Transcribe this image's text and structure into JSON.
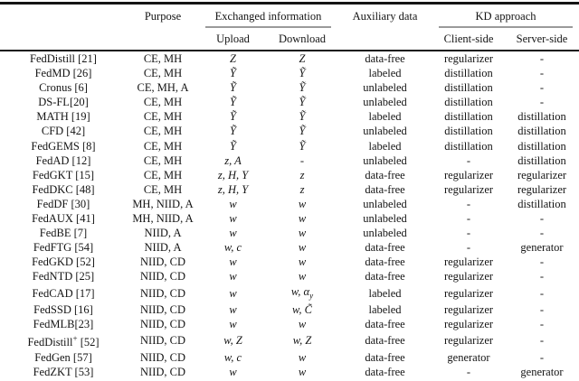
{
  "table": {
    "header": {
      "method": "",
      "purpose": "Purpose",
      "exchanged_info": "Exchanged information",
      "upload": "Upload",
      "download": "Download",
      "auxiliary": "Auxiliary data",
      "kd_approach": "KD approach",
      "client_side": "Client-side",
      "server_side": "Server-side"
    },
    "rows": [
      {
        "method": "FedDistill [21]",
        "purpose": "CE, MH",
        "upload": "Z",
        "download": "Z",
        "auxiliary": "data-free",
        "client": "regularizer",
        "server": "-"
      },
      {
        "method": "FedMD [26]",
        "purpose": "CE, MH",
        "upload": "Ỹ",
        "download": "Ỹ",
        "auxiliary": "labeled",
        "client": "distillation",
        "server": "-"
      },
      {
        "method": "Cronus [6]",
        "purpose": "CE, MH, A",
        "upload": "Ỹ",
        "download": "Ỹ",
        "auxiliary": "unlabeled",
        "client": "distillation",
        "server": "-"
      },
      {
        "method": "DS-FL[20]",
        "purpose": "CE, MH",
        "upload": "Ỹ",
        "download": "Ỹ",
        "auxiliary": "unlabeled",
        "client": "distillation",
        "server": "-"
      },
      {
        "method": "MATH [19]",
        "purpose": "CE, MH",
        "upload": "Ỹ",
        "download": "Ỹ",
        "auxiliary": "labeled",
        "client": "distillation",
        "server": "distillation"
      },
      {
        "method": "CFD [42]",
        "purpose": "CE, MH",
        "upload": "Ỹ",
        "download": "Ỹ",
        "auxiliary": "unlabeled",
        "client": "distillation",
        "server": "distillation"
      },
      {
        "method": "FedGEMS [8]",
        "purpose": "CE, MH",
        "upload": "Ỹ",
        "download": "Ỹ",
        "auxiliary": "labeled",
        "client": "distillation",
        "server": "distillation"
      },
      {
        "method": "FedAD [12]",
        "purpose": "CE, MH",
        "upload": "z, A",
        "download": "-",
        "auxiliary": "unlabeled",
        "client": "-",
        "server": "distillation"
      },
      {
        "method": "FedGKT [15]",
        "purpose": "CE, MH",
        "upload": "z, H, Y",
        "download": "z",
        "auxiliary": "data-free",
        "client": "regularizer",
        "server": "regularizer"
      },
      {
        "method": "FedDKC [48]",
        "purpose": "CE, MH",
        "upload": "z, H, Y",
        "download": "z",
        "auxiliary": "data-free",
        "client": "regularizer",
        "server": "regularizer"
      },
      {
        "method": "FedDF [30]",
        "purpose": "MH, NIID, A",
        "upload": "w",
        "download": "w",
        "auxiliary": "unlabeled",
        "client": "-",
        "server": "distillation"
      },
      {
        "method": "FedAUX [41]",
        "purpose": "MH, NIID, A",
        "upload": "w",
        "download": "w",
        "auxiliary": "unlabeled",
        "client": "-",
        "server": "-"
      },
      {
        "method": "FedBE [7]",
        "purpose": "NIID, A",
        "upload": "w",
        "download": "w",
        "auxiliary": "unlabeled",
        "client": "-",
        "server": "-"
      },
      {
        "method": "FedFTG [54]",
        "purpose": "NIID, A",
        "upload": "w, c",
        "download": "w",
        "auxiliary": "data-free",
        "client": "-",
        "server": "generator"
      },
      {
        "method": "FedGKD [52]",
        "purpose": "NIID, CD",
        "upload": "w",
        "download": "w",
        "auxiliary": "data-free",
        "client": "regularizer",
        "server": "-"
      },
      {
        "method": "FedNTD [25]",
        "purpose": "NIID, CD",
        "upload": "w",
        "download": "w",
        "auxiliary": "data-free",
        "client": "regularizer",
        "server": "-"
      },
      {
        "method": "FedCAD [17]",
        "purpose": "NIID, CD",
        "upload": "w",
        "download": "w, α_y",
        "auxiliary": "labeled",
        "client": "regularizer",
        "server": "-"
      },
      {
        "method": "FedSSD [16]",
        "purpose": "NIID, CD",
        "upload": "w",
        "download": "w, C̃",
        "auxiliary": "labeled",
        "client": "regularizer",
        "server": "-"
      },
      {
        "method": "FedMLB[23]",
        "purpose": "NIID, CD",
        "upload": "w",
        "download": "w",
        "auxiliary": "data-free",
        "client": "regularizer",
        "server": "-"
      },
      {
        "method": "FedDistill^+ [52]",
        "purpose": "NIID, CD",
        "upload": "w, Z",
        "download": "w, Z",
        "auxiliary": "data-free",
        "client": "regularizer",
        "server": "-"
      },
      {
        "method": "FedGen [57]",
        "purpose": "NIID, CD",
        "upload": "w, c",
        "download": "w",
        "auxiliary": "data-free",
        "client": "generator",
        "server": "-"
      },
      {
        "method": "FedZKT [53]",
        "purpose": "NIID, CD",
        "upload": "w",
        "download": "w",
        "auxiliary": "data-free",
        "client": "-",
        "server": "generator"
      }
    ]
  }
}
